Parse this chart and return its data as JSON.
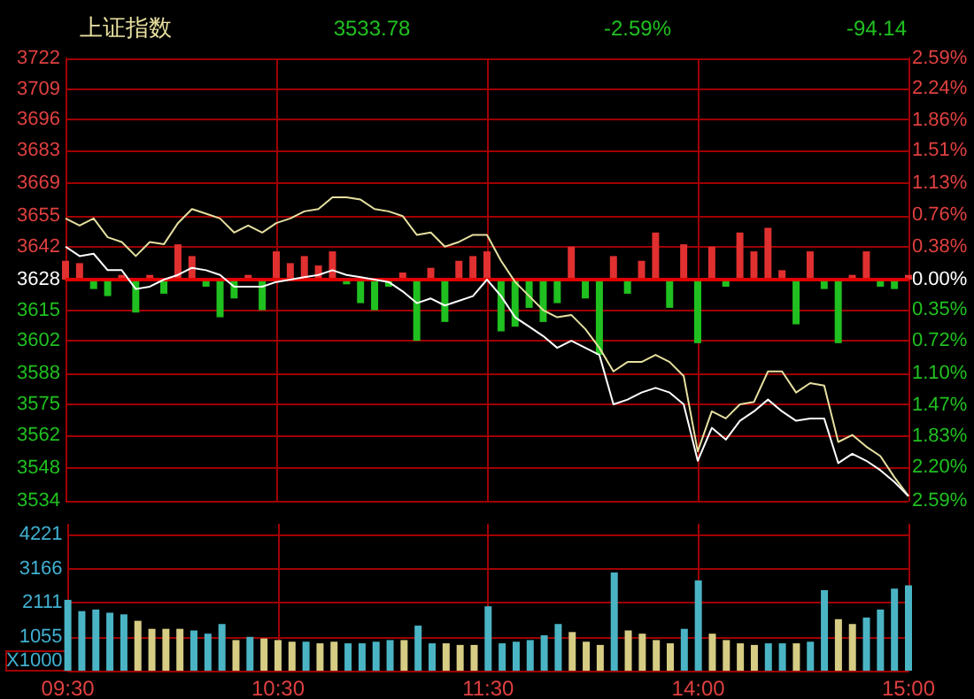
{
  "chart_data": [
    {
      "type": "line",
      "title": "上证指数",
      "annotations": [
        "3533.78",
        "-2.59%",
        "-94.14"
      ],
      "categories": [
        null,
        null,
        null,
        null,
        null,
        null,
        null,
        null,
        null,
        null,
        null,
        null,
        null,
        null,
        null,
        null,
        null,
        null,
        null,
        null,
        null,
        null,
        null,
        null,
        null,
        null,
        null,
        null,
        null,
        null,
        null,
        null,
        null,
        null,
        null,
        null,
        null,
        null,
        null,
        null,
        null,
        null,
        null,
        null,
        null,
        null,
        null,
        null,
        null,
        null,
        null,
        null,
        null,
        null,
        null,
        null,
        null,
        null,
        null,
        null,
        null
      ],
      "series": [
        {
          "color": "#e6e0a0",
          "values": [
            3654,
            3651,
            3654,
            3646,
            3644,
            3638,
            3644,
            3643,
            3652,
            3658,
            3656,
            3654,
            3648,
            3651,
            3648,
            3652,
            3654,
            3657,
            3658,
            3663,
            3663,
            3662,
            3658,
            3657,
            3655,
            3647,
            3648,
            3642,
            3644,
            3647,
            3647,
            3636,
            3627,
            3621,
            3615,
            3612,
            3613,
            3607,
            3599,
            3589,
            3593,
            3593,
            3596,
            3593,
            3587,
            3555,
            3572,
            3569,
            3575,
            3576,
            3589,
            3589,
            3580,
            3584,
            3583,
            3559,
            3562,
            3557,
            3553,
            3544,
            3536
          ]
        },
        {
          "color": "#ffffff",
          "values": [
            3642,
            3638,
            3639,
            3632,
            3632,
            3624,
            3625,
            3628,
            3630,
            3633,
            3632,
            3630,
            3625,
            3625,
            3625,
            3627,
            3628,
            3629,
            3630,
            3632,
            3630,
            3629,
            3628,
            3627,
            3623,
            3618,
            3620,
            3617,
            3619,
            3621,
            3628,
            3621,
            3612,
            3608,
            3604,
            3599,
            3602,
            3599,
            3596,
            3575,
            3577,
            3580,
            3582,
            3580,
            3575,
            3551,
            3565,
            3560,
            3568,
            3572,
            3577,
            3572,
            3568,
            3569,
            3569,
            3550,
            3554,
            3551,
            3547,
            3542,
            3536
          ]
        },
        {
          "type": "bar",
          "base": [
            3628,
            3628,
            3628,
            3628,
            3628,
            3628,
            3628,
            3628,
            3628,
            3628,
            3628,
            3628,
            3628,
            3628,
            3628,
            3628,
            3628,
            3628,
            3628,
            3628,
            3628,
            3628,
            3628,
            3628,
            3628,
            3628,
            3628,
            3628,
            3628,
            3628,
            3628,
            3628,
            3628,
            3628,
            3628,
            3628,
            3628,
            3628,
            3628,
            3628,
            3628,
            3628,
            3628,
            3628,
            3628,
            3628,
            3628,
            3628,
            3628,
            3628,
            3628,
            3628,
            3628,
            3628,
            3628,
            3628,
            3628,
            3628,
            3628,
            3628,
            3628
          ],
          "values": [
            8,
            7,
            -4,
            -7,
            2,
            -14,
            2,
            -6,
            15,
            10,
            -3,
            -16,
            -8,
            2,
            -13,
            12,
            7,
            10,
            6,
            12,
            -2,
            -10,
            -13,
            -3,
            3,
            -26,
            5,
            -18,
            8,
            10,
            12,
            -22,
            -20,
            -12,
            -18,
            -10,
            14,
            -8,
            -32,
            10,
            -6,
            8,
            20,
            -12,
            15,
            -27,
            14,
            -3,
            20,
            12,
            22,
            4,
            -19,
            12,
            -4,
            -27,
            2,
            12,
            -3,
            -4,
            2
          ],
          "colors": [
            "#e03030",
            "#e03030",
            "#20c020",
            "#20c020",
            "#e03030",
            "#20c020",
            "#e03030",
            "#20c020",
            "#e03030",
            "#e03030",
            "#20c020",
            "#20c020",
            "#20c020",
            "#e03030",
            "#20c020",
            "#e03030",
            "#e03030",
            "#e03030",
            "#e03030",
            "#e03030",
            "#20c020",
            "#20c020",
            "#20c020",
            "#20c020",
            "#e03030",
            "#20c020",
            "#e03030",
            "#20c020",
            "#e03030",
            "#e03030",
            "#e03030",
            "#20c020",
            "#20c020",
            "#20c020",
            "#20c020",
            "#20c020",
            "#e03030",
            "#20c020",
            "#20c020",
            "#e03030",
            "#20c020",
            "#e03030",
            "#e03030",
            "#20c020",
            "#e03030",
            "#20c020",
            "#e03030",
            "#20c020",
            "#e03030",
            "#e03030",
            "#e03030",
            "#e03030",
            "#20c020",
            "#e03030",
            "#20c020",
            "#20c020",
            "#e03030",
            "#e03030",
            "#20c020",
            "#20c020",
            "#e03030"
          ]
        }
      ],
      "ylim": [
        3534,
        3722
      ],
      "yticks": [
        3534,
        3548,
        3562,
        3575,
        3588,
        3602,
        3615,
        3628,
        3642,
        3655,
        3669,
        3683,
        3696,
        3709,
        3722
      ],
      "y2lim": [
        -2.59,
        2.59
      ],
      "y2ticks": [
        {
          "value": -2.59,
          "label": "2.59%"
        },
        {
          "value": -2.2,
          "label": "2.20%"
        },
        {
          "value": -1.83,
          "label": "1.83%"
        },
        {
          "value": -1.47,
          "label": "1.47%"
        },
        {
          "value": -1.1,
          "label": "1.10%"
        },
        {
          "value": -0.72,
          "label": "0.72%"
        },
        {
          "value": -0.35,
          "label": "0.35%"
        },
        {
          "value": 0,
          "label": "0.00%"
        },
        {
          "value": 0.38,
          "label": "0.38%"
        },
        {
          "value": 0.76,
          "label": "0.76%"
        },
        {
          "value": 1.13,
          "label": "1.13%"
        },
        {
          "value": 1.51,
          "label": "1.51%"
        },
        {
          "value": 1.86,
          "label": "1.86%"
        },
        {
          "value": 2.24,
          "label": "2.24%"
        },
        {
          "value": 2.59,
          "label": "2.59%"
        }
      ],
      "ref_lines": [
        {
          "axis": "y",
          "value": 3628,
          "color": "#e00000"
        }
      ],
      "grid": true,
      "tick_labels": "y"
    },
    {
      "type": "bar",
      "ylabel": "X1000",
      "categories": [
        "09:30",
        null,
        null,
        null,
        null,
        null,
        null,
        null,
        null,
        null,
        null,
        null,
        null,
        null,
        null,
        "10:30",
        null,
        null,
        null,
        null,
        null,
        null,
        null,
        null,
        null,
        null,
        null,
        null,
        null,
        null,
        "11:30",
        null,
        null,
        null,
        null,
        null,
        null,
        null,
        null,
        null,
        null,
        null,
        null,
        null,
        null,
        "14:00",
        null,
        null,
        null,
        null,
        null,
        null,
        null,
        null,
        null,
        null,
        null,
        null,
        null,
        null,
        "15:00"
      ],
      "values": [
        2200,
        1850,
        1900,
        1800,
        1750,
        1550,
        1300,
        1300,
        1300,
        1250,
        1150,
        1450,
        950,
        1050,
        1000,
        950,
        900,
        900,
        850,
        900,
        850,
        850,
        900,
        950,
        950,
        1400,
        850,
        850,
        800,
        800,
        2000,
        850,
        900,
        950,
        1100,
        1450,
        1200,
        900,
        800,
        3050,
        1250,
        1150,
        950,
        850,
        1300,
        2800,
        1150,
        950,
        850,
        800,
        850,
        850,
        850,
        900,
        2500,
        1600,
        1450,
        1650,
        1900,
        2550,
        2650
      ],
      "colors": [
        "#4ab4c4",
        "#4ab4c4",
        "#4ab4c4",
        "#4ab4c4",
        "#4ab4c4",
        "#d6cc84",
        "#d6cc84",
        "#d6cc84",
        "#d6cc84",
        "#4ab4c4",
        "#4ab4c4",
        "#4ab4c4",
        "#d6cc84",
        "#4ab4c4",
        "#d6cc84",
        "#d6cc84",
        "#d6cc84",
        "#4ab4c4",
        "#d6cc84",
        "#d6cc84",
        "#4ab4c4",
        "#4ab4c4",
        "#4ab4c4",
        "#4ab4c4",
        "#d6cc84",
        "#4ab4c4",
        "#4ab4c4",
        "#d6cc84",
        "#d6cc84",
        "#d6cc84",
        "#4ab4c4",
        "#4ab4c4",
        "#4ab4c4",
        "#4ab4c4",
        "#4ab4c4",
        "#4ab4c4",
        "#d6cc84",
        "#d6cc84",
        "#d6cc84",
        "#4ab4c4",
        "#d6cc84",
        "#d6cc84",
        "#d6cc84",
        "#d6cc84",
        "#4ab4c4",
        "#4ab4c4",
        "#d6cc84",
        "#d6cc84",
        "#d6cc84",
        "#d6cc84",
        "#4ab4c4",
        "#4ab4c4",
        "#d6cc84",
        "#4ab4c4",
        "#4ab4c4",
        "#d6cc84",
        "#d6cc84",
        "#4ab4c4",
        "#4ab4c4",
        "#4ab4c4",
        "#4ab4c4"
      ],
      "ylim": [
        0,
        5276
      ],
      "yticks": [
        1055,
        2111,
        3166,
        4221
      ],
      "grid": true
    }
  ]
}
